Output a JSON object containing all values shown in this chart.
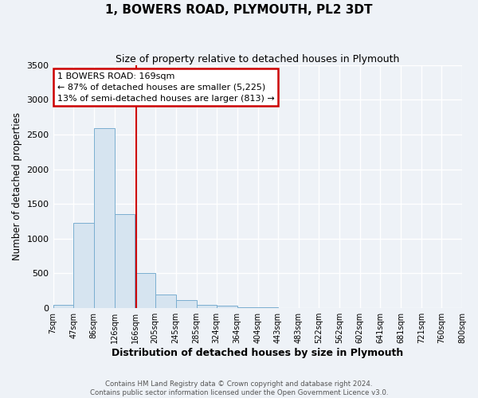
{
  "title": "1, BOWERS ROAD, PLYMOUTH, PL2 3DT",
  "subtitle": "Size of property relative to detached houses in Plymouth",
  "xlabel": "Distribution of detached houses by size in Plymouth",
  "ylabel": "Number of detached properties",
  "bar_color": "#d6e4f0",
  "bar_edge_color": "#7aaed0",
  "vline_x": 169,
  "vline_color": "#cc0000",
  "ylim": [
    0,
    3500
  ],
  "yticks": [
    0,
    500,
    1000,
    1500,
    2000,
    2500,
    3000,
    3500
  ],
  "bin_edges": [
    7,
    47,
    86,
    126,
    166,
    205,
    245,
    285,
    324,
    364,
    404,
    443,
    483,
    522,
    562,
    602,
    641,
    681,
    721,
    760,
    800
  ],
  "bin_labels": [
    "7sqm",
    "47sqm",
    "86sqm",
    "126sqm",
    "166sqm",
    "205sqm",
    "245sqm",
    "285sqm",
    "324sqm",
    "364sqm",
    "404sqm",
    "443sqm",
    "483sqm",
    "522sqm",
    "562sqm",
    "602sqm",
    "641sqm",
    "681sqm",
    "721sqm",
    "760sqm",
    "800sqm"
  ],
  "bar_heights": [
    50,
    1230,
    2590,
    1350,
    500,
    200,
    110,
    50,
    30,
    15,
    10,
    5,
    0,
    0,
    0,
    0,
    0,
    0,
    0,
    0
  ],
  "annotation_line1": "1 BOWERS ROAD: 169sqm",
  "annotation_line2": "← 87% of detached houses are smaller (5,225)",
  "annotation_line3": "13% of semi-detached houses are larger (813) →",
  "annotation_box_color": "#cc0000",
  "footer_line1": "Contains HM Land Registry data © Crown copyright and database right 2024.",
  "footer_line2": "Contains public sector information licensed under the Open Government Licence v3.0.",
  "background_color": "#eef2f7",
  "grid_color": "#ffffff"
}
